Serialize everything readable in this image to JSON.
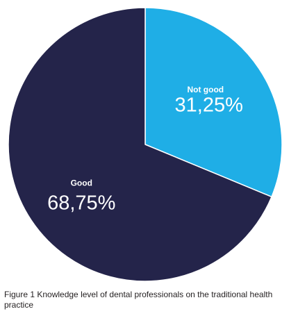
{
  "chart_data": {
    "type": "pie",
    "categories": [
      "Not good",
      "Good"
    ],
    "values": [
      31.25,
      68.75
    ],
    "value_labels": [
      "31,25%",
      "68,75%"
    ],
    "colors": [
      "#1faee6",
      "#24244a"
    ],
    "start_angle_deg": 0,
    "direction": "clockwise",
    "slice_border_color": "#ffffff"
  },
  "caption": "Figure 1 Knowledge level of dental professionals on the traditional health practice"
}
